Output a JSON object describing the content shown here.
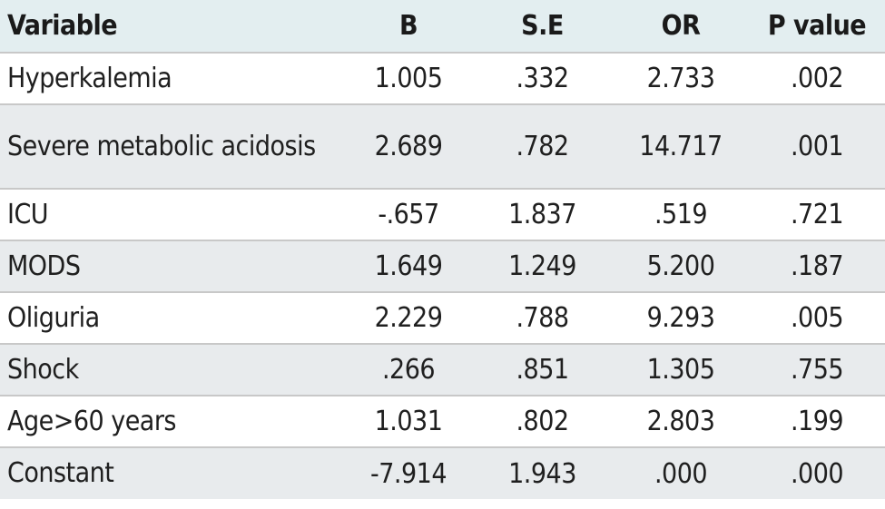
{
  "table": {
    "headers": [
      "Variable",
      "B",
      "S.E",
      "OR",
      "P value"
    ],
    "rows": [
      {
        "variable": "Hyperkalemia",
        "b": "1.005",
        "se": ".332",
        "or": "2.733",
        "p": ".002"
      },
      {
        "variable": "Severe metabolic acidosis",
        "b": "2.689",
        "se": ".782",
        "or": "14.717",
        "p": ".001"
      },
      {
        "variable": "ICU",
        "b": "-.657",
        "se": "1.837",
        "or": ".519",
        "p": ".721"
      },
      {
        "variable": "MODS",
        "b": "1.649",
        "se": "1.249",
        "or": "5.200",
        "p": ".187"
      },
      {
        "variable": "Oliguria",
        "b": "2.229",
        "se": ".788",
        "or": "9.293",
        "p": ".005"
      },
      {
        "variable": "Shock",
        "b": ".266",
        "se": ".851",
        "or": "1.305",
        "p": ".755"
      },
      {
        "variable": "Age>60 years",
        "b": "1.031",
        "se": ".802",
        "or": "2.803",
        "p": ".199"
      },
      {
        "variable": "Constant",
        "b": "-7.914",
        "se": "1.943",
        "or": ".000",
        "p": ".000"
      }
    ]
  },
  "colors": {
    "header_bg": "#e3eef0",
    "stripe_bg": "#e8ebed",
    "rule": "#c8c8c8"
  }
}
